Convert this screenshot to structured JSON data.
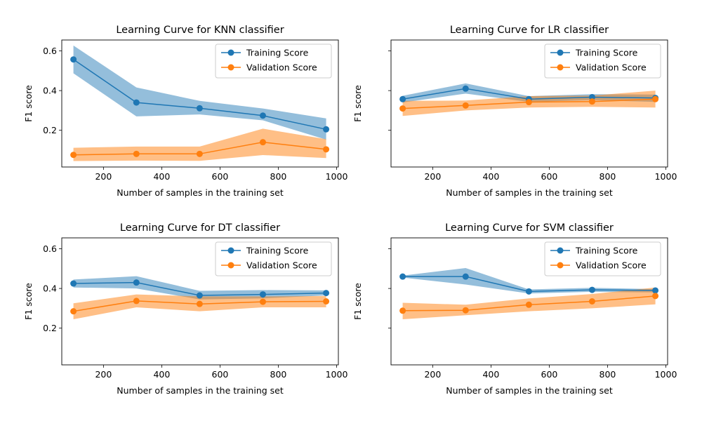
{
  "colors": {
    "training": "#1f77b4",
    "validation": "#ff7f0e"
  },
  "chart_data": [
    {
      "type": "line",
      "title": "Learning Curve for KNN classifier",
      "xlabel": "Number of samples in the training set",
      "ylabel": "F1 score",
      "xlim": [
        57,
        1006
      ],
      "ylim": [
        0.015,
        0.655
      ],
      "xticks": [
        "200",
        "400",
        "600",
        "800",
        "1000"
      ],
      "yticks": [
        "0.2",
        "0.4",
        "0.6"
      ],
      "show_yticklabels": true,
      "legend": "top-right",
      "x": [
        97,
        313,
        530,
        747,
        964
      ],
      "series": [
        {
          "name": "Training Score",
          "values": [
            0.557,
            0.34,
            0.311,
            0.274,
            0.205
          ],
          "lower": [
            0.487,
            0.27,
            0.28,
            0.25,
            0.153
          ],
          "upper": [
            0.627,
            0.416,
            0.348,
            0.31,
            0.26
          ]
        },
        {
          "name": "Validation Score",
          "values": [
            0.076,
            0.081,
            0.081,
            0.14,
            0.104
          ],
          "lower": [
            0.045,
            0.047,
            0.046,
            0.075,
            0.06
          ],
          "upper": [
            0.112,
            0.118,
            0.118,
            0.208,
            0.155
          ]
        }
      ]
    },
    {
      "type": "line",
      "title": "Learning Curve for LR classifier",
      "xlabel": "Number of samples in the training set",
      "ylabel": "F1 score",
      "xlim": [
        57,
        1006
      ],
      "ylim": [
        0.015,
        0.655
      ],
      "xticks": [
        "200",
        "400",
        "600",
        "800",
        "1000"
      ],
      "yticks": [
        "0.2",
        "0.4",
        "0.6"
      ],
      "show_yticklabels": false,
      "legend": "top-right",
      "x": [
        97,
        313,
        530,
        747,
        964
      ],
      "series": [
        {
          "name": "Training Score",
          "values": [
            0.357,
            0.41,
            0.357,
            0.367,
            0.363
          ],
          "lower": [
            0.34,
            0.385,
            0.343,
            0.352,
            0.343
          ],
          "upper": [
            0.374,
            0.436,
            0.372,
            0.382,
            0.38
          ]
        },
        {
          "name": "Validation Score",
          "values": [
            0.31,
            0.325,
            0.342,
            0.345,
            0.357
          ],
          "lower": [
            0.272,
            0.3,
            0.315,
            0.318,
            0.315
          ],
          "upper": [
            0.348,
            0.35,
            0.372,
            0.375,
            0.4
          ]
        }
      ]
    },
    {
      "type": "line",
      "title": "Learning Curve for DT classifier",
      "xlabel": "Number of samples in the training set",
      "ylabel": "F1 score",
      "xlim": [
        57,
        1006
      ],
      "ylim": [
        0.015,
        0.655
      ],
      "xticks": [
        "200",
        "400",
        "600",
        "800",
        "1000"
      ],
      "yticks": [
        "0.2",
        "0.4",
        "0.6"
      ],
      "show_yticklabels": true,
      "legend": "top-right",
      "x": [
        97,
        313,
        530,
        747,
        964
      ],
      "series": [
        {
          "name": "Training Score",
          "values": [
            0.425,
            0.43,
            0.365,
            0.37,
            0.377
          ],
          "lower": [
            0.405,
            0.4,
            0.345,
            0.35,
            0.365
          ],
          "upper": [
            0.445,
            0.462,
            0.388,
            0.392,
            0.39
          ]
        },
        {
          "name": "Validation Score",
          "values": [
            0.285,
            0.337,
            0.322,
            0.333,
            0.335
          ],
          "lower": [
            0.245,
            0.305,
            0.285,
            0.305,
            0.305
          ],
          "upper": [
            0.325,
            0.37,
            0.36,
            0.36,
            0.362
          ]
        }
      ]
    },
    {
      "type": "line",
      "title": "Learning Curve for SVM classifier",
      "xlabel": "Number of samples in the training set",
      "ylabel": "F1 score",
      "xlim": [
        57,
        1006
      ],
      "ylim": [
        0.015,
        0.655
      ],
      "xticks": [
        "200",
        "400",
        "600",
        "800",
        "1000"
      ],
      "yticks": [
        "0.2",
        "0.4",
        "0.6"
      ],
      "show_yticklabels": false,
      "legend": "top-right",
      "x": [
        97,
        313,
        530,
        747,
        964
      ],
      "series": [
        {
          "name": "Training Score",
          "values": [
            0.46,
            0.46,
            0.385,
            0.393,
            0.39
          ],
          "lower": [
            0.455,
            0.42,
            0.375,
            0.383,
            0.38
          ],
          "upper": [
            0.465,
            0.503,
            0.395,
            0.403,
            0.397
          ]
        },
        {
          "name": "Validation Score",
          "values": [
            0.288,
            0.29,
            0.318,
            0.335,
            0.362
          ],
          "lower": [
            0.245,
            0.265,
            0.285,
            0.3,
            0.32
          ],
          "upper": [
            0.328,
            0.318,
            0.35,
            0.372,
            0.405
          ]
        }
      ]
    }
  ]
}
